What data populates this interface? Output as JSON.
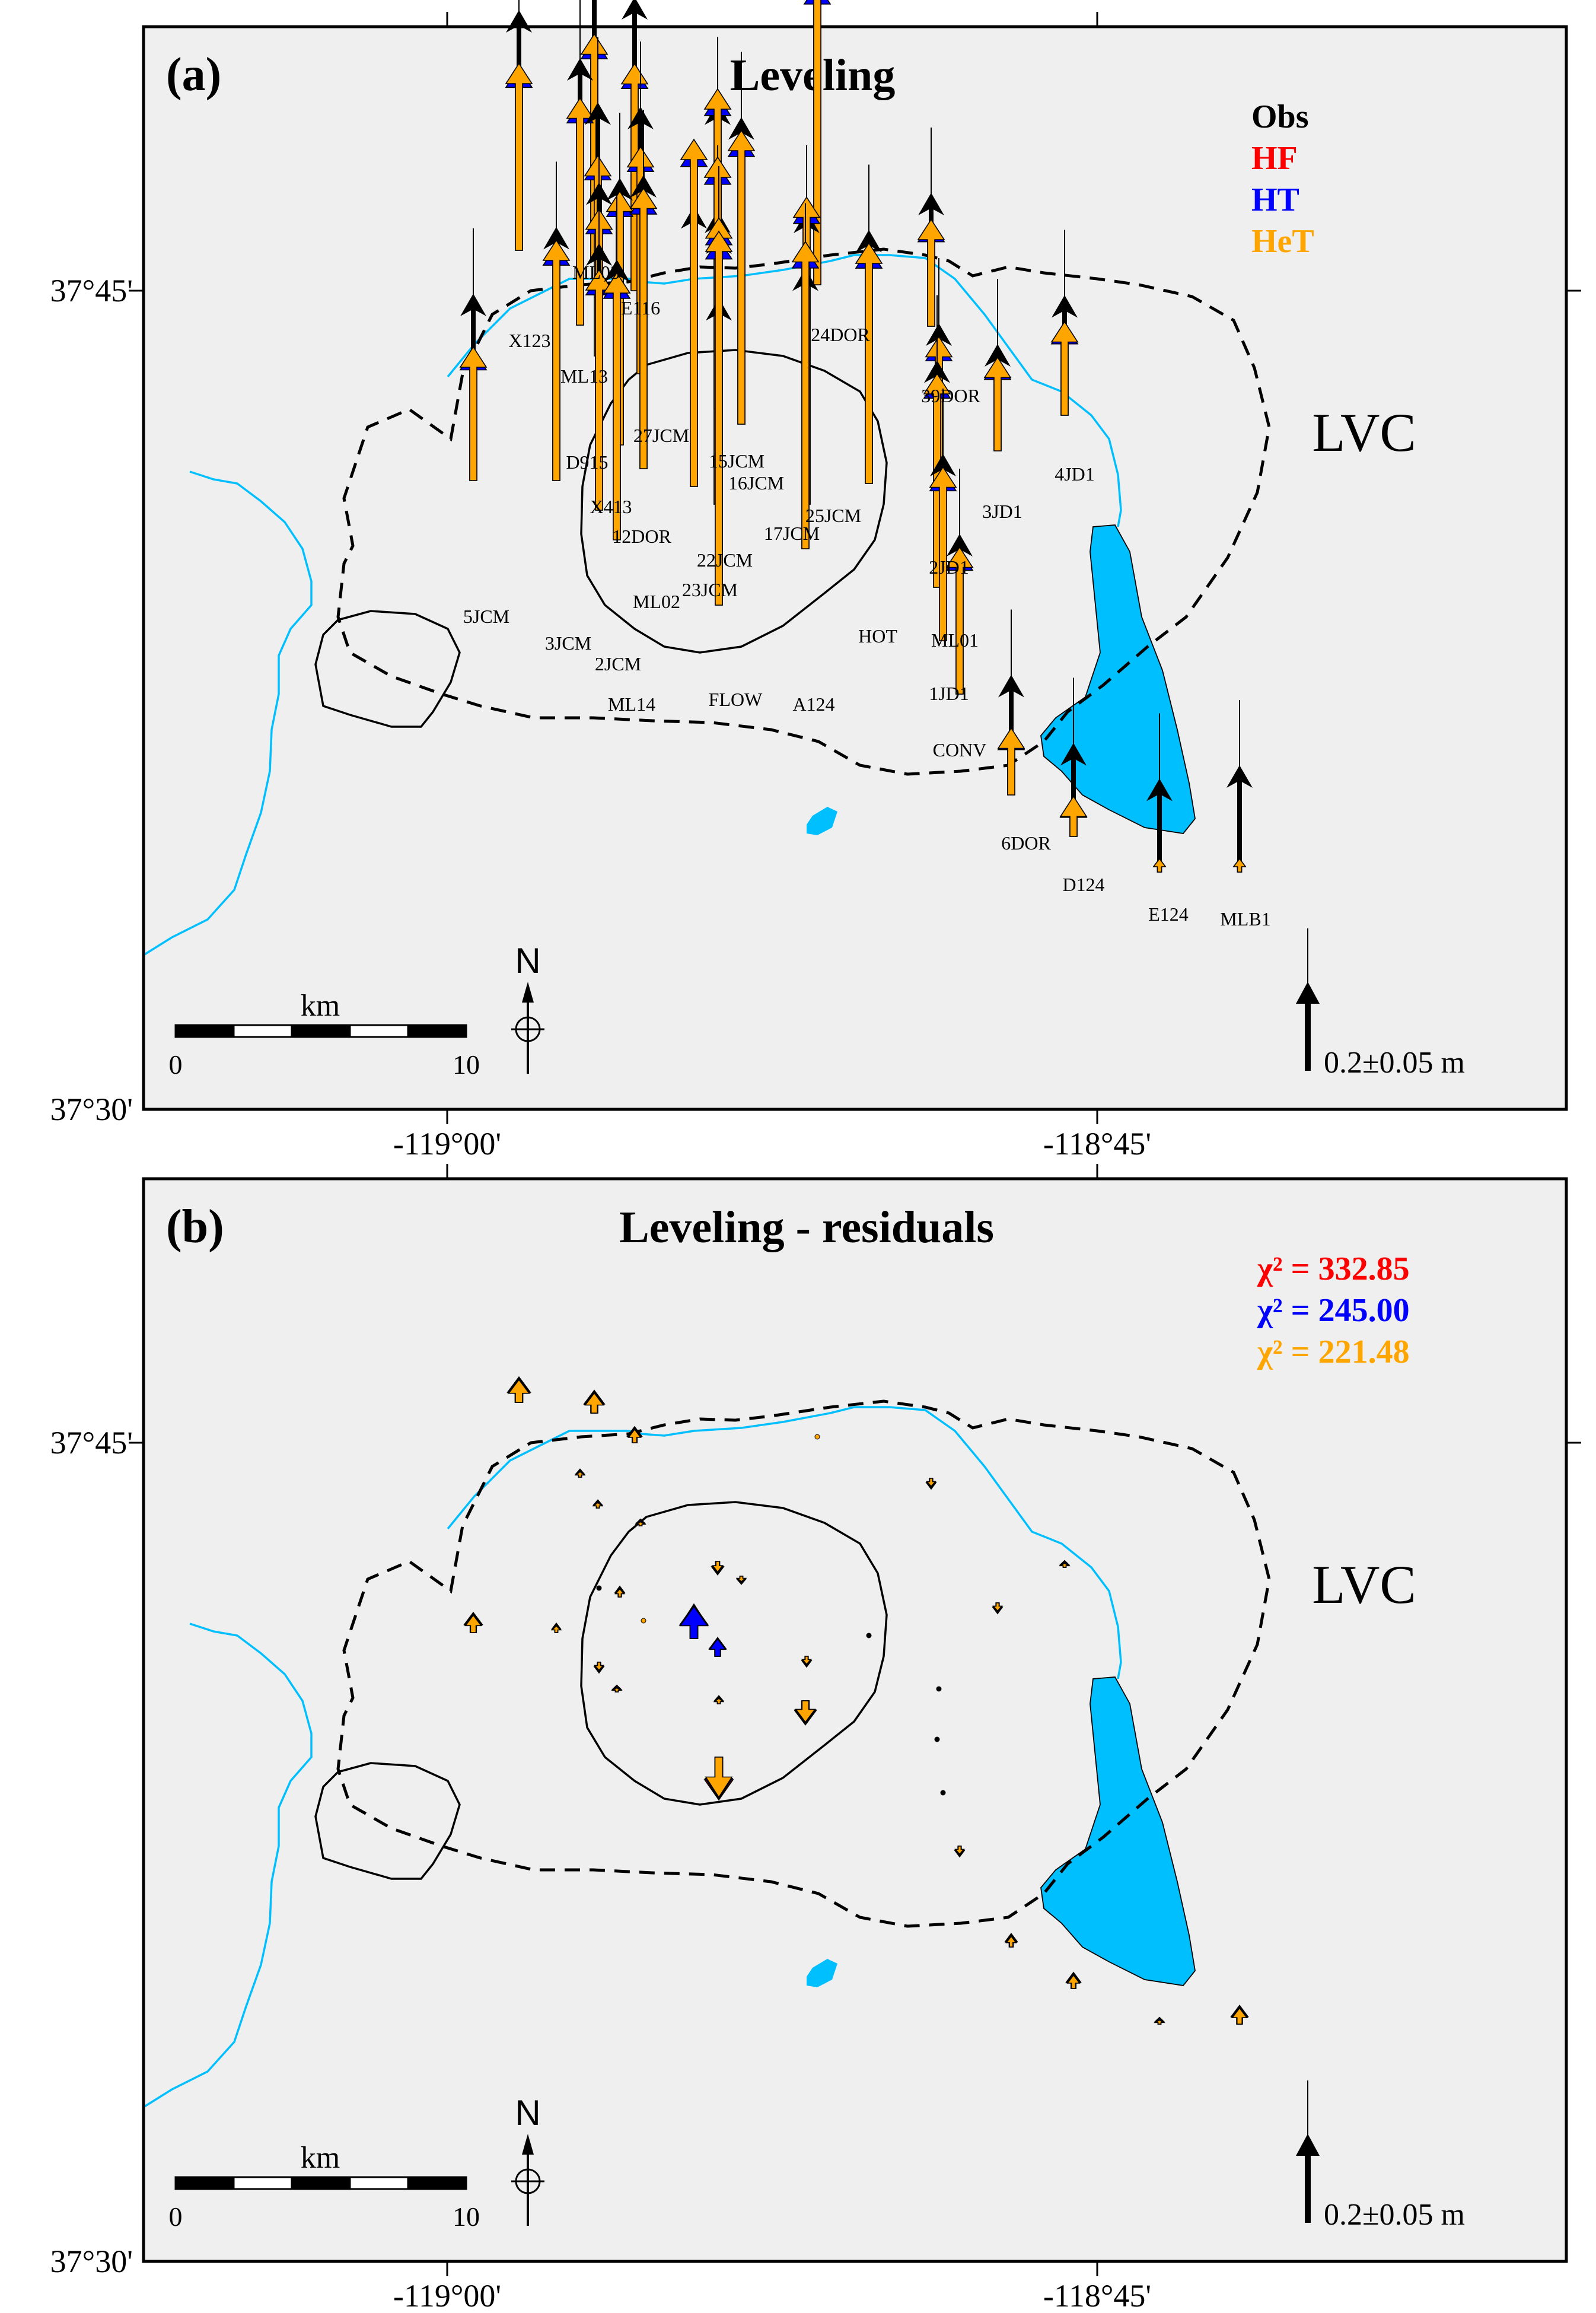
{
  "panels": [
    {
      "id": "a",
      "panel_label": "(a)",
      "title": "Leveling",
      "legend": [
        {
          "text": "Obs",
          "color": "#000000"
        },
        {
          "text": "HF",
          "color": "#ff0000"
        },
        {
          "text": "HT",
          "color": "#0000ff"
        },
        {
          "text": "HeT",
          "color": "#ffa500"
        }
      ],
      "region_label": "LVC",
      "scale": {
        "unit_label": "km",
        "tick_labels": [
          "0",
          "10"
        ]
      },
      "north_label": "N",
      "ref_label": "0.2±0.05 m",
      "lat_labels": [
        "37°45'",
        "37°30'"
      ],
      "lon_labels": [
        "-119°00'",
        "-118°45'"
      ]
    },
    {
      "id": "b",
      "panel_label": "(b)",
      "title": "Leveling - residuals",
      "legend": [
        {
          "text": "χ² = 332.85",
          "color": "#ff0000"
        },
        {
          "text": "χ² = 245.00",
          "color": "#0000ff"
        },
        {
          "text": "χ² = 221.48",
          "color": "#ffa500"
        }
      ],
      "region_label": "LVC",
      "scale": {
        "unit_label": "km",
        "tick_labels": [
          "0",
          "10"
        ]
      },
      "north_label": "N",
      "ref_label": "0.2±0.05 m",
      "lat_labels": [
        "37°45'",
        "37°30'"
      ],
      "lon_labels": [
        "-119°00'",
        "-118°45'"
      ]
    }
  ],
  "colors": {
    "background": "#efefef",
    "lake": "#00bfff",
    "obs": "#000000",
    "hf": "#ff0000",
    "ht": "#0000ff",
    "het": "#ffa500"
  },
  "benchmarks": [
    {
      "name": "X123",
      "obs": 0.18,
      "het": 0.14
    },
    {
      "name": "ML03",
      "obs": 0.22,
      "het": 0.17
    },
    {
      "name": "E116",
      "obs": 0.22,
      "het": 0.17
    },
    {
      "name": "ML13",
      "obs": 0.2,
      "het": 0.17
    },
    {
      "name": "D915",
      "obs": 0.19,
      "het": 0.15
    },
    {
      "name": "27JCM",
      "obs": 0.2,
      "het": 0.17
    },
    {
      "name": "X413",
      "obs": 0.19,
      "het": 0.17
    },
    {
      "name": "12DOR",
      "obs": 0.2,
      "het": 0.19
    },
    {
      "name": "ML02",
      "obs": 0.22,
      "het": 0.21
    },
    {
      "name": "15JCM",
      "obs": 0.23,
      "het": 0.24
    },
    {
      "name": "16JCM",
      "obs": 0.23,
      "het": 0.22
    },
    {
      "name": "17JCM",
      "obs": 0.22,
      "het": 0.26
    },
    {
      "name": "22JCM",
      "obs": 0.21,
      "het": 0.26
    },
    {
      "name": "23JCM",
      "obs": 0.24,
      "het": 0.25
    },
    {
      "name": "24DOR",
      "obs": 0.23,
      "het": 0.23
    },
    {
      "name": "25JCM",
      "obs": 0.22,
      "het": 0.23
    },
    {
      "name": "5JCM",
      "obs": 0.14,
      "het": 0.1
    },
    {
      "name": "3JCM",
      "obs": 0.19,
      "het": 0.18
    },
    {
      "name": "2JCM",
      "obs": 0.2,
      "het": 0.18
    },
    {
      "name": "ML14",
      "obs": 0.21,
      "het": 0.2
    },
    {
      "name": "FLOW",
      "obs": 0.23,
      "het": 0.28
    },
    {
      "name": "A124",
      "obs": 0.21,
      "het": 0.23
    },
    {
      "name": "HOT",
      "obs": 0.19,
      "het": 0.18
    },
    {
      "name": "39DOR",
      "obs": 0.1,
      "het": 0.08
    },
    {
      "name": "3JD1",
      "obs": 0.08,
      "het": 0.07
    },
    {
      "name": "4JD1",
      "obs": 0.09,
      "het": 0.07
    },
    {
      "name": "2JD1",
      "obs": 0.16,
      "het": 0.15
    },
    {
      "name": "ML01",
      "obs": 0.17,
      "het": 0.16
    },
    {
      "name": "1JD1",
      "obs": 0.14,
      "het": 0.13
    },
    {
      "name": "CONV",
      "obs": 0.12,
      "het": 0.11
    },
    {
      "name": "6DOR",
      "obs": 0.09,
      "het": 0.05
    },
    {
      "name": "D124",
      "obs": 0.07,
      "het": 0.03
    },
    {
      "name": "E124",
      "obs": 0.07,
      "het": 0.01
    },
    {
      "name": "MLB1",
      "obs": 0.08,
      "het": 0.01
    }
  ]
}
